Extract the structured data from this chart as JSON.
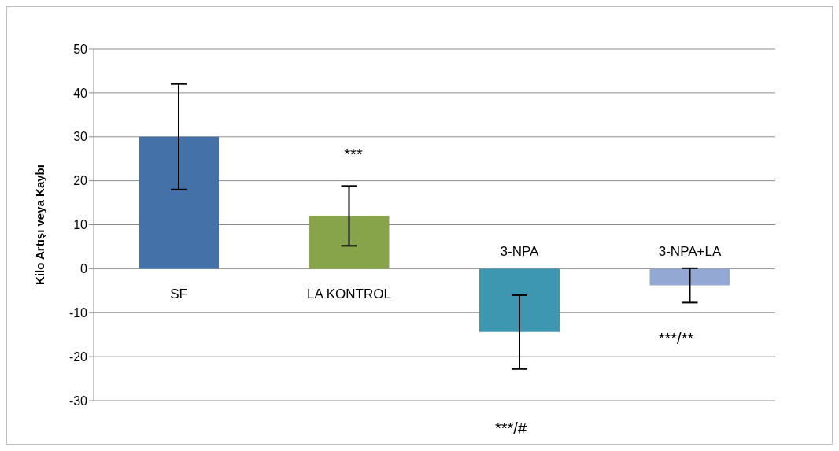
{
  "chart_data": {
    "type": "bar",
    "ylabel": "Kilo Artışı veya Kaybı",
    "categories": [
      "SF",
      "LA KONTROL",
      "3-NPA",
      "3-NPA+LA"
    ],
    "values": [
      30,
      12,
      -14.4,
      -3.8
    ],
    "colors": [
      "#4471a8",
      "#88a44b",
      "#3d97b0",
      "#93a9d3"
    ],
    "errors": [
      12,
      6.8,
      8.4,
      3.9
    ],
    "ylim": [
      -30,
      50
    ],
    "yticks": [
      -30,
      -20,
      -10,
      0,
      10,
      20,
      30,
      40,
      50
    ],
    "grid": "y",
    "legend": false,
    "annotations": [
      "***",
      "***/**",
      "***/#"
    ]
  }
}
